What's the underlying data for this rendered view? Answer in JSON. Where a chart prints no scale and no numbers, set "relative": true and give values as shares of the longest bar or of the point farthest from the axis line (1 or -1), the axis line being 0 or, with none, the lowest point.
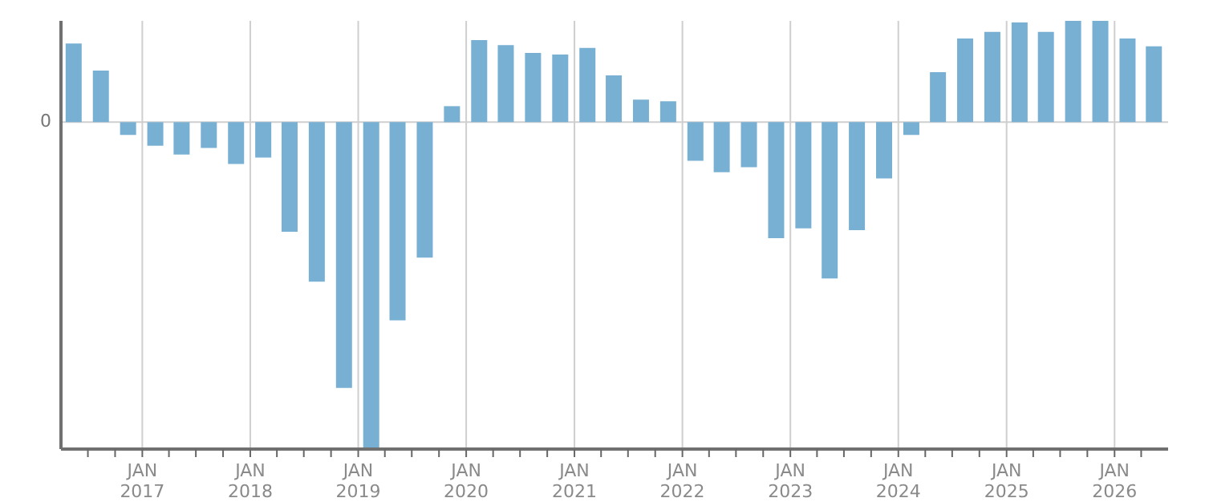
{
  "chart_data": {
    "type": "bar",
    "relative": true,
    "color": "#78b0d3",
    "grid": true,
    "x": [
      "2016-05-15",
      "2016-08-15",
      "2016-11-15",
      "2017-02-15",
      "2017-05-15",
      "2017-08-15",
      "2017-11-15",
      "2018-02-15",
      "2018-05-15",
      "2018-08-15",
      "2018-11-15",
      "2019-02-15",
      "2019-05-15",
      "2019-08-15",
      "2019-11-15",
      "2020-02-15",
      "2020-05-15",
      "2020-08-15",
      "2020-11-15",
      "2021-02-15",
      "2021-05-15",
      "2021-08-15",
      "2021-11-15",
      "2022-02-15",
      "2022-05-15",
      "2022-08-15",
      "2022-11-15",
      "2023-02-15",
      "2023-05-15",
      "2023-08-15",
      "2023-11-15",
      "2024-02-15",
      "2024-05-15",
      "2024-08-15",
      "2024-11-15",
      "2025-02-15",
      "2025-05-15",
      "2025-08-15",
      "2025-11-15",
      "2026-02-15",
      "2026-05-15"
    ],
    "values": [
      0.241,
      0.158,
      -0.039,
      -0.072,
      -0.099,
      -0.079,
      -0.128,
      -0.108,
      -0.335,
      -0.488,
      -0.813,
      -1,
      -0.606,
      -0.414,
      0.049,
      0.251,
      0.236,
      0.212,
      0.207,
      0.227,
      0.143,
      0.069,
      0.064,
      -0.118,
      -0.153,
      -0.138,
      -0.355,
      -0.325,
      -0.478,
      -0.33,
      -0.172,
      -0.039,
      0.153,
      0.256,
      0.276,
      0.305,
      0.276,
      0.31,
      0.31,
      0.256,
      0.232
    ],
    "annotations": [
      "0"
    ],
    "xlim": [
      "2016-04-01",
      "2026-07-01"
    ],
    "xticks": [
      {
        "value": "2016-07-01",
        "label": null
      },
      {
        "value": "2016-10-01",
        "label": null
      },
      {
        "value": "2017-01-01",
        "label": "JAN\n2017"
      },
      {
        "value": "2017-04-01",
        "label": null
      },
      {
        "value": "2017-07-01",
        "label": null
      },
      {
        "value": "2017-10-01",
        "label": null
      },
      {
        "value": "2018-01-01",
        "label": "JAN\n2018"
      },
      {
        "value": "2018-04-01",
        "label": null
      },
      {
        "value": "2018-07-01",
        "label": null
      },
      {
        "value": "2018-10-01",
        "label": null
      },
      {
        "value": "2019-01-01",
        "label": "JAN\n2019"
      },
      {
        "value": "2019-04-01",
        "label": null
      },
      {
        "value": "2019-07-01",
        "label": null
      },
      {
        "value": "2019-10-01",
        "label": null
      },
      {
        "value": "2020-01-01",
        "label": "JAN\n2020"
      },
      {
        "value": "2020-04-01",
        "label": null
      },
      {
        "value": "2020-07-01",
        "label": null
      },
      {
        "value": "2020-10-01",
        "label": null
      },
      {
        "value": "2021-01-01",
        "label": "JAN\n2021"
      },
      {
        "value": "2021-04-01",
        "label": null
      },
      {
        "value": "2021-07-01",
        "label": null
      },
      {
        "value": "2021-10-01",
        "label": null
      },
      {
        "value": "2022-01-01",
        "label": "JAN\n2022"
      },
      {
        "value": "2022-04-01",
        "label": null
      },
      {
        "value": "2022-07-01",
        "label": null
      },
      {
        "value": "2022-10-01",
        "label": null
      },
      {
        "value": "2023-01-01",
        "label": "JAN\n2023"
      },
      {
        "value": "2023-04-01",
        "label": null
      },
      {
        "value": "2023-07-01",
        "label": null
      },
      {
        "value": "2023-10-01",
        "label": null
      },
      {
        "value": "2024-01-01",
        "label": "JAN\n2024"
      },
      {
        "value": "2024-04-01",
        "label": null
      },
      {
        "value": "2024-07-01",
        "label": null
      },
      {
        "value": "2024-10-01",
        "label": null
      },
      {
        "value": "2025-01-01",
        "label": "JAN\n2025"
      },
      {
        "value": "2025-04-01",
        "label": null
      },
      {
        "value": "2025-07-01",
        "label": null
      },
      {
        "value": "2025-10-01",
        "label": null
      },
      {
        "value": "2026-01-01",
        "label": "JAN\n2026"
      },
      {
        "value": "2026-04-01",
        "label": null
      }
    ]
  }
}
